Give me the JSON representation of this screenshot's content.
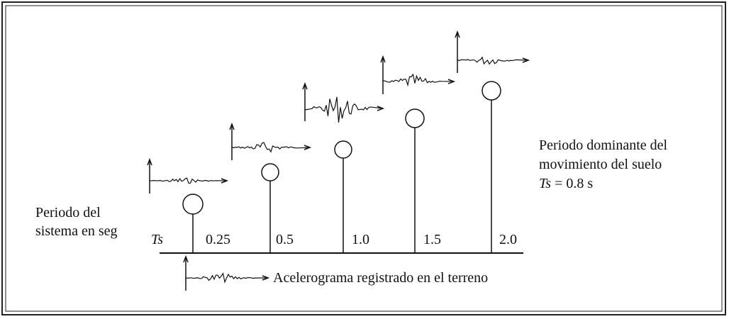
{
  "system_label": [
    "Periodo del",
    "sistema en seg"
  ],
  "axis_labels": [
    "Ts",
    "0.25",
    "0.5",
    "1.0",
    "1.5",
    "2.0"
  ],
  "dominant_label": [
    "Periodo dominante del",
    "movimiento del suelo"
  ],
  "dominant_value": {
    "symbol": "Ts",
    "text": "= 0.8 s"
  },
  "legend": "Acelerograma registrado en el terreno"
}
